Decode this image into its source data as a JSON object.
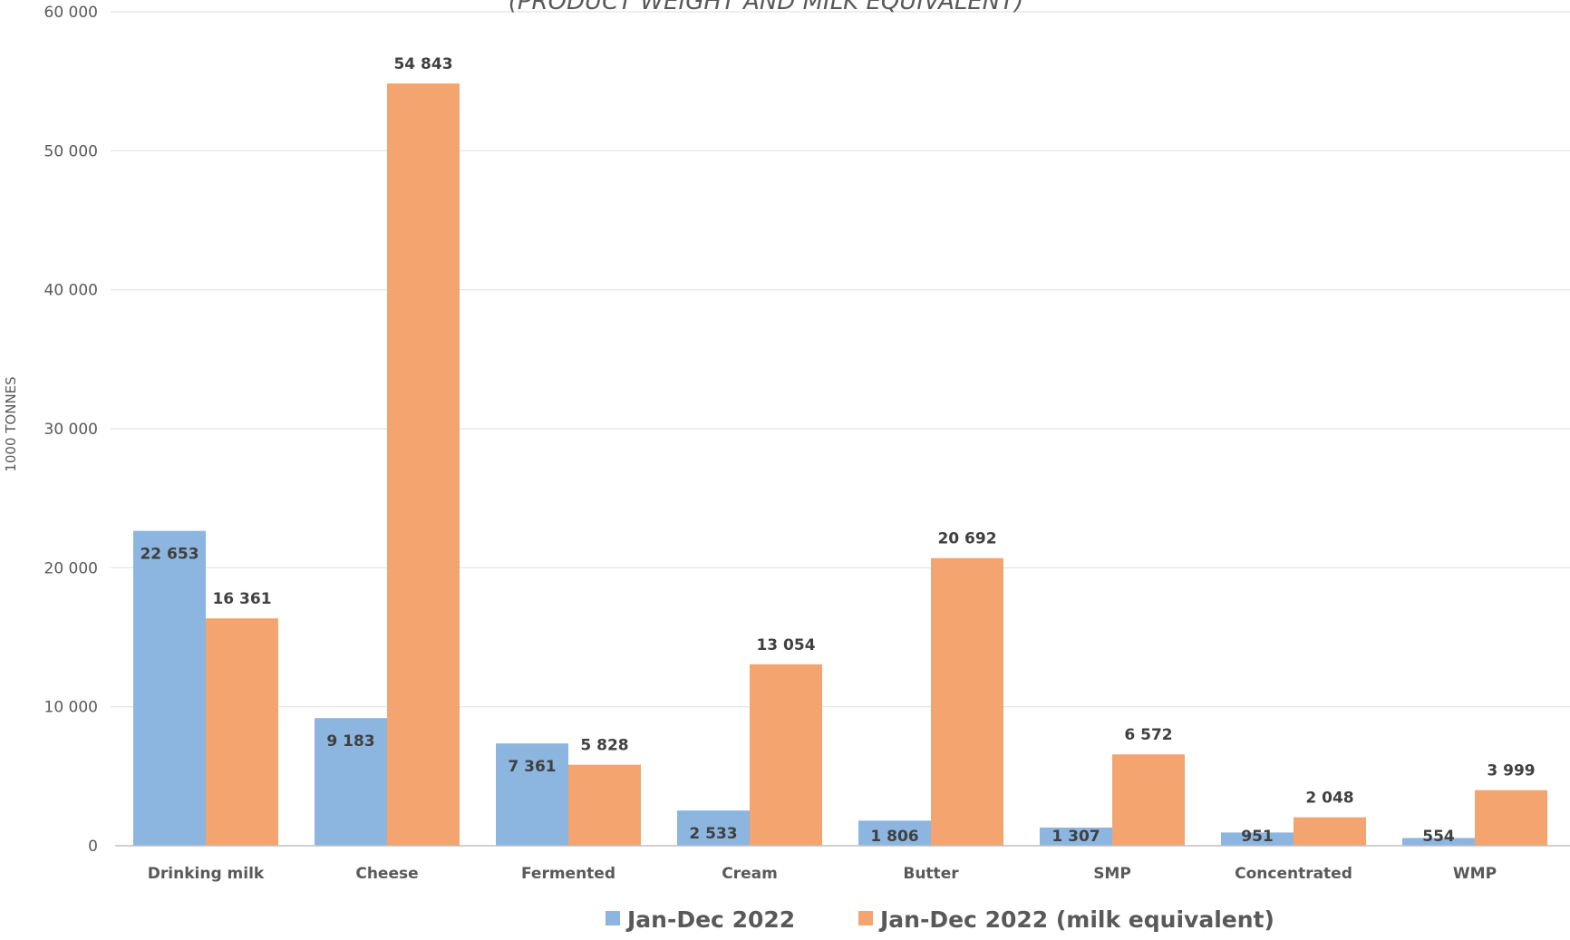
{
  "chart_data": {
    "type": "bar",
    "title": "(PRODUCT WEIGHT AND MILK EQUIVALENT)",
    "ylabel": "1000 TONNES",
    "xlabel": "",
    "ylim": [
      0,
      60000
    ],
    "yticks": [
      0,
      10000,
      20000,
      30000,
      40000,
      50000,
      60000
    ],
    "ytick_labels": [
      "0",
      "10 000",
      "20 000",
      "30 000",
      "40 000",
      "50 000",
      "60 000"
    ],
    "grid": true,
    "legend_position": "bottom",
    "categories": [
      "Drinking milk",
      "Cheese",
      "Fermented",
      "Cream",
      "Butter",
      "SMP",
      "Concentrated",
      "WMP"
    ],
    "series": [
      {
        "name": "Jan-Dec 2022",
        "color": "#8CB5E0",
        "values": [
          22653,
          9183,
          7361,
          2533,
          1806,
          1307,
          951,
          554
        ],
        "labels": [
          "22 653",
          "9 183",
          "7 361",
          "2 533",
          "1 806",
          "1 307",
          "951",
          "554"
        ]
      },
      {
        "name": "Jan-Dec 2022 (milk equivalent)",
        "color": "#F4A46E",
        "values": [
          16361,
          54843,
          5828,
          13054,
          20692,
          6572,
          2048,
          3999
        ],
        "labels": [
          "16 361",
          "54 843",
          "5 828",
          "13 054",
          "20 692",
          "6 572",
          "2 048",
          "3 999"
        ]
      }
    ]
  }
}
